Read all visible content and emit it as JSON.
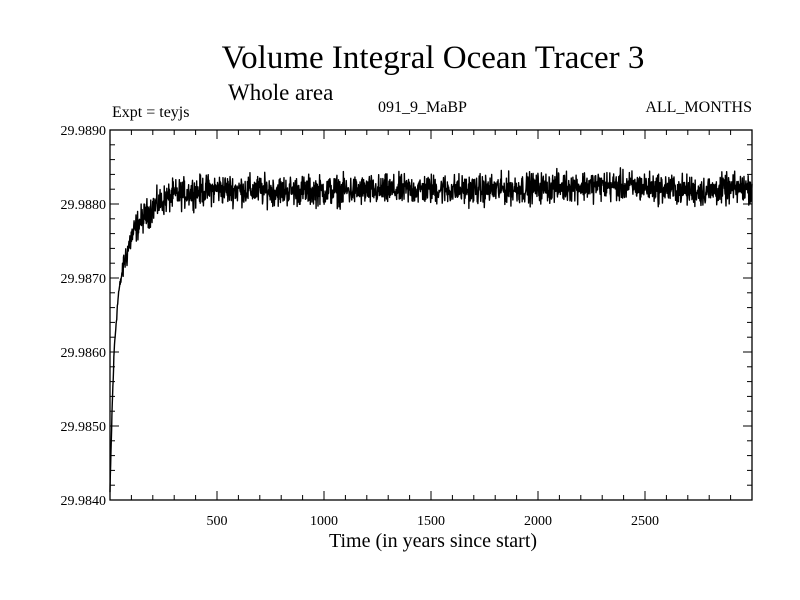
{
  "chart_data": {
    "type": "line",
    "title": "Volume Integral Ocean Tracer 3",
    "subtitle": "Whole area",
    "annotations": {
      "experiment": "Expt = teyjs",
      "run": "091_9_MaBP",
      "months": "ALL_MONTHS"
    },
    "xlabel": "Time (in years since start)",
    "ylabel": "",
    "xlim": [
      0,
      3000
    ],
    "ylim": [
      29.984,
      29.989
    ],
    "xticks": [
      500,
      1000,
      1500,
      2000,
      2500
    ],
    "yticks": [
      "29.9840",
      "29.9850",
      "29.9860",
      "29.9870",
      "29.9880",
      "29.9890"
    ],
    "grid": false,
    "series": [
      {
        "name": "",
        "color": "#000000",
        "x": [
          0,
          10,
          20,
          30,
          40,
          50,
          60,
          80,
          100,
          125,
          150,
          175,
          200,
          250,
          300,
          400,
          500,
          750,
          1000,
          1250,
          1500,
          1750,
          2000,
          2250,
          2500,
          2750,
          3000
        ],
        "y": [
          29.9841,
          29.98525,
          29.98605,
          29.98645,
          29.9868,
          29.98695,
          29.98715,
          29.98735,
          29.98755,
          29.9877,
          29.9878,
          29.98787,
          29.98795,
          29.98805,
          29.98812,
          29.98817,
          29.9882,
          29.98818,
          29.98818,
          29.98818,
          29.9882,
          29.98819,
          29.98822,
          29.98825,
          29.98823,
          29.98817,
          29.98822
        ],
        "noise_amplitude": 0.0003
      }
    ]
  }
}
